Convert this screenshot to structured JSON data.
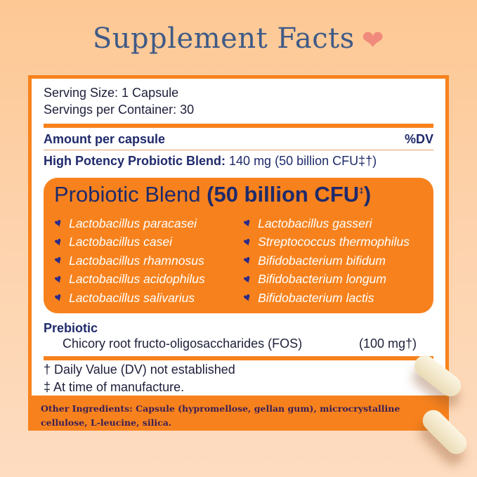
{
  "title": "Supplement Facts",
  "title_icon": "heart-icon",
  "serving_size": "Serving Size: 1 Capsule",
  "servings_per_container": "Servings per Container: 30",
  "amount_header": "Amount per capsule",
  "dv_header": "%DV",
  "blend_label": "High Potency Probiotic Blend:",
  "blend_amount": "140 mg (50 billion CFU‡†)",
  "probiotic_box": {
    "title": "Probiotic Blend",
    "cfu": "(50 billion CFU",
    "cfu_mark": "‡",
    "cfu_close": ")",
    "left": [
      "Lactobacillus paracasei",
      "Lactobacillus casei",
      "Lactobacillus rhamnosus",
      "Lactobacillus acidophilus",
      "Lactobacillus salivarius"
    ],
    "right": [
      "Lactobacillus gasseri",
      "Streptococcus thermophilus",
      "Bifidobacterium bifidum",
      "Bifidobacterium longum",
      "Bifidobacterium lactis"
    ]
  },
  "prebiotic": {
    "label": "Prebiotic",
    "item": "Chicory root fructo-oligosaccharides (FOS)",
    "amount": "(100 mg†)"
  },
  "footnotes": [
    "† Daily Value (DV) not established",
    "‡ At time of manufacture."
  ],
  "other_ingredients": "Other Ingredients: Capsule (hypromellose, gellan gum), microcrystalline cellulose, L-leucine, silica.",
  "colors": {
    "accent": "#f7821d",
    "navy": "#1f2a6b",
    "title": "#3f5a86",
    "heart": "#f08a7c"
  }
}
